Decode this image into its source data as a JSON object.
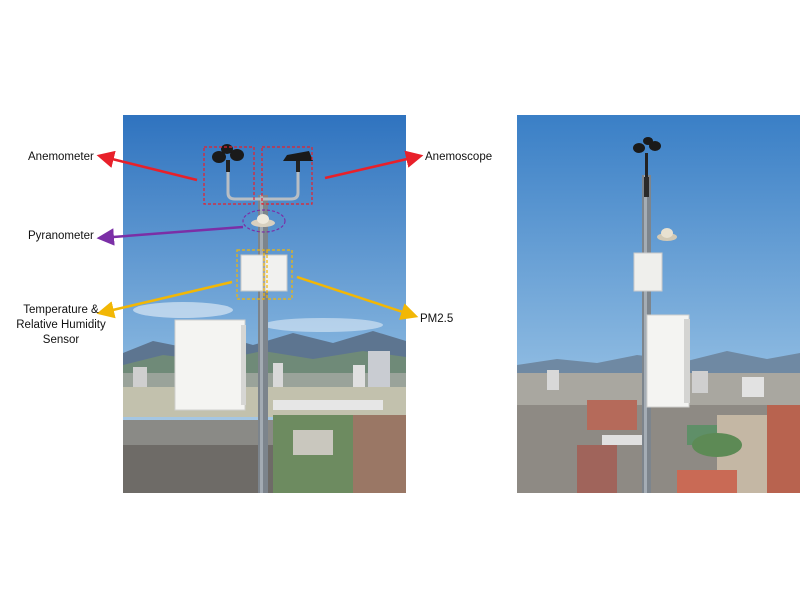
{
  "labels": {
    "anemometer": "Anemometer",
    "anemoscope": "Anemoscope",
    "pyranometer": "Pyranometer",
    "temperature_humidity": "Temperature & Relative Humidity Sensor",
    "pm25": "PM2.5"
  },
  "colors": {
    "anemometer_arrow": "#e8202a",
    "anemoscope_arrow": "#e8202a",
    "pyranometer_arrow": "#7b2fa6",
    "temperature_humidity_arrow": "#f2b705",
    "pm25_arrow": "#f2b705",
    "sky_top": "#3f86c8",
    "sky_bottom": "#b7d4ec"
  }
}
